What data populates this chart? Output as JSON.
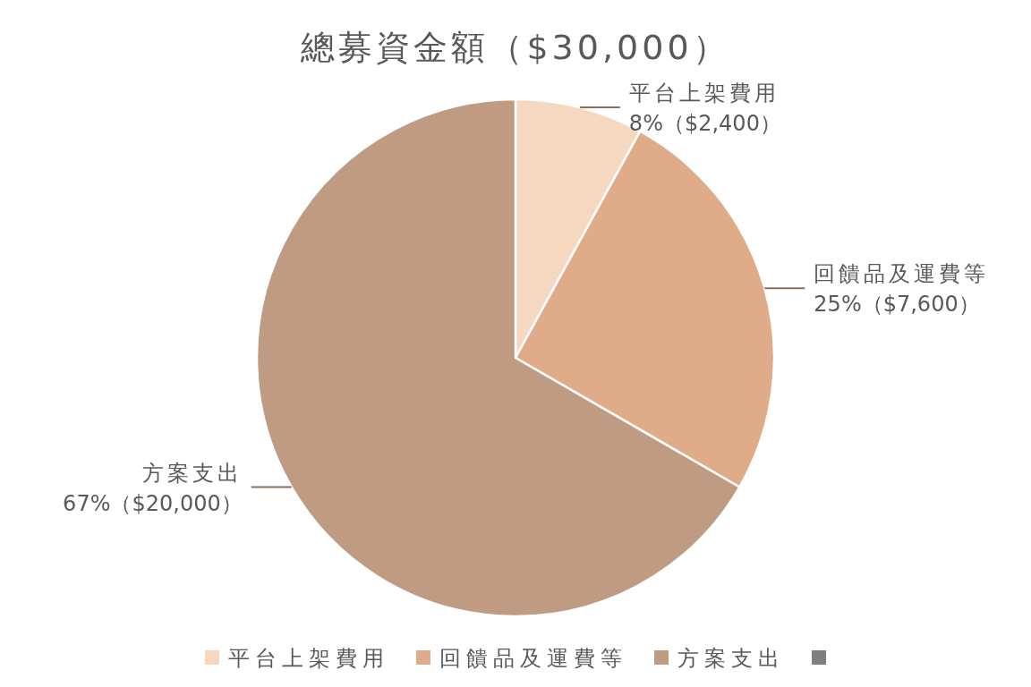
{
  "chart_data": {
    "type": "pie",
    "title": "總募資金額（$30,000）",
    "categories": [
      "平台上架費用",
      "回饋品及運費等",
      "方案支出",
      null
    ],
    "values": [
      2400,
      7600,
      20000,
      0
    ],
    "value_labels": [
      "8%（$2,400）",
      "25%（$7,600）",
      "67%（$20,000）",
      null
    ],
    "colors": [
      "#f6d7c0",
      "#e0ab88",
      "#bf9b83",
      "#7f7f7f"
    ],
    "legend": "bottom"
  }
}
